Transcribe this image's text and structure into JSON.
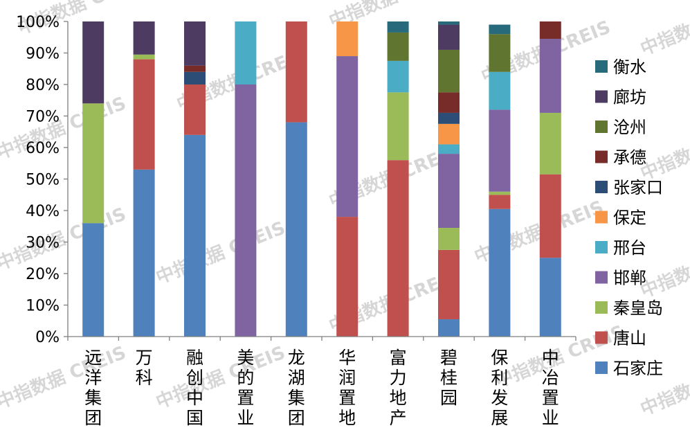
{
  "watermark": "中指数据 CREIS",
  "chart_data": {
    "type": "bar",
    "stacked": true,
    "percent": true,
    "ylim": [
      0,
      100
    ],
    "y_ticks": [
      "0%",
      "10%",
      "20%",
      "30%",
      "40%",
      "50%",
      "60%",
      "70%",
      "80%",
      "90%",
      "100%"
    ],
    "categories": [
      "远洋集团",
      "万科",
      "融创中国",
      "美的置业",
      "龙湖集团",
      "华润置地",
      "富力地产",
      "碧桂园",
      "保利发展",
      "中冶置业"
    ],
    "legend_position": "right",
    "series": [
      {
        "name": "石家庄",
        "color": "#4f81bd",
        "values": [
          36,
          53,
          64,
          0,
          68,
          0,
          0,
          5.5,
          40.5,
          25
        ]
      },
      {
        "name": "唐山",
        "color": "#c0504d",
        "values": [
          0,
          35,
          16,
          0,
          32,
          38,
          56,
          22,
          4.5,
          26.5
        ]
      },
      {
        "name": "秦皇岛",
        "color": "#9bbb59",
        "values": [
          38,
          1.5,
          0,
          0,
          0,
          0,
          21.5,
          7,
          1,
          19.5
        ]
      },
      {
        "name": "邯郸",
        "color": "#8064a2",
        "values": [
          0,
          0,
          0,
          80,
          0,
          51,
          0,
          23.5,
          26,
          23.5
        ]
      },
      {
        "name": "邢台",
        "color": "#4bacc6",
        "values": [
          0,
          0,
          0,
          20,
          0,
          0,
          10,
          3,
          12,
          0
        ]
      },
      {
        "name": "保定",
        "color": "#f79646",
        "values": [
          0,
          0,
          0,
          0,
          0,
          11,
          0,
          6.5,
          0,
          0
        ]
      },
      {
        "name": "张家口",
        "color": "#2c4d75",
        "values": [
          0,
          0,
          4,
          0,
          0,
          0,
          0,
          3.5,
          0,
          0
        ]
      },
      {
        "name": "承德",
        "color": "#772c2a",
        "values": [
          0,
          0,
          2,
          0,
          0,
          0,
          0,
          6.5,
          0,
          5.5
        ]
      },
      {
        "name": "沧州",
        "color": "#5f7530",
        "values": [
          0,
          0,
          0,
          0,
          0,
          0,
          9,
          13.5,
          12,
          0
        ]
      },
      {
        "name": "廊坊",
        "color": "#4d3b62",
        "values": [
          26,
          10.5,
          14,
          0,
          0,
          0,
          0,
          8,
          0,
          0
        ]
      },
      {
        "name": "衡水",
        "color": "#276a7c",
        "values": [
          0,
          0,
          0,
          0,
          0,
          0,
          3.5,
          1,
          3,
          0
        ]
      }
    ]
  }
}
